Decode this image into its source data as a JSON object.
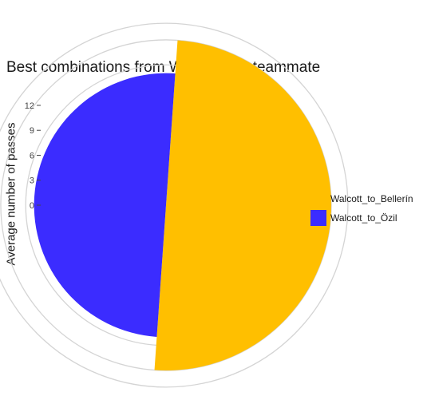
{
  "chart_data": {
    "type": "pie",
    "subtype": "polar-area",
    "title": "Best combinations from Walcott to a teammate",
    "xlabel": "",
    "ylabel": "Average number of passes",
    "y_ticks": [
      "12",
      "9",
      "6",
      "3",
      "0"
    ],
    "y_tick_values": [
      12,
      9,
      6,
      3,
      0
    ],
    "ylim": [
      -5,
      14
    ],
    "grid": true,
    "legend_position": "right",
    "categories": [
      "Walcott_to_Bellerín",
      "Walcott_to_Özil"
    ],
    "values": [
      12,
      8
    ],
    "colors": [
      "#FFBF00",
      "#3B2CFF"
    ]
  }
}
